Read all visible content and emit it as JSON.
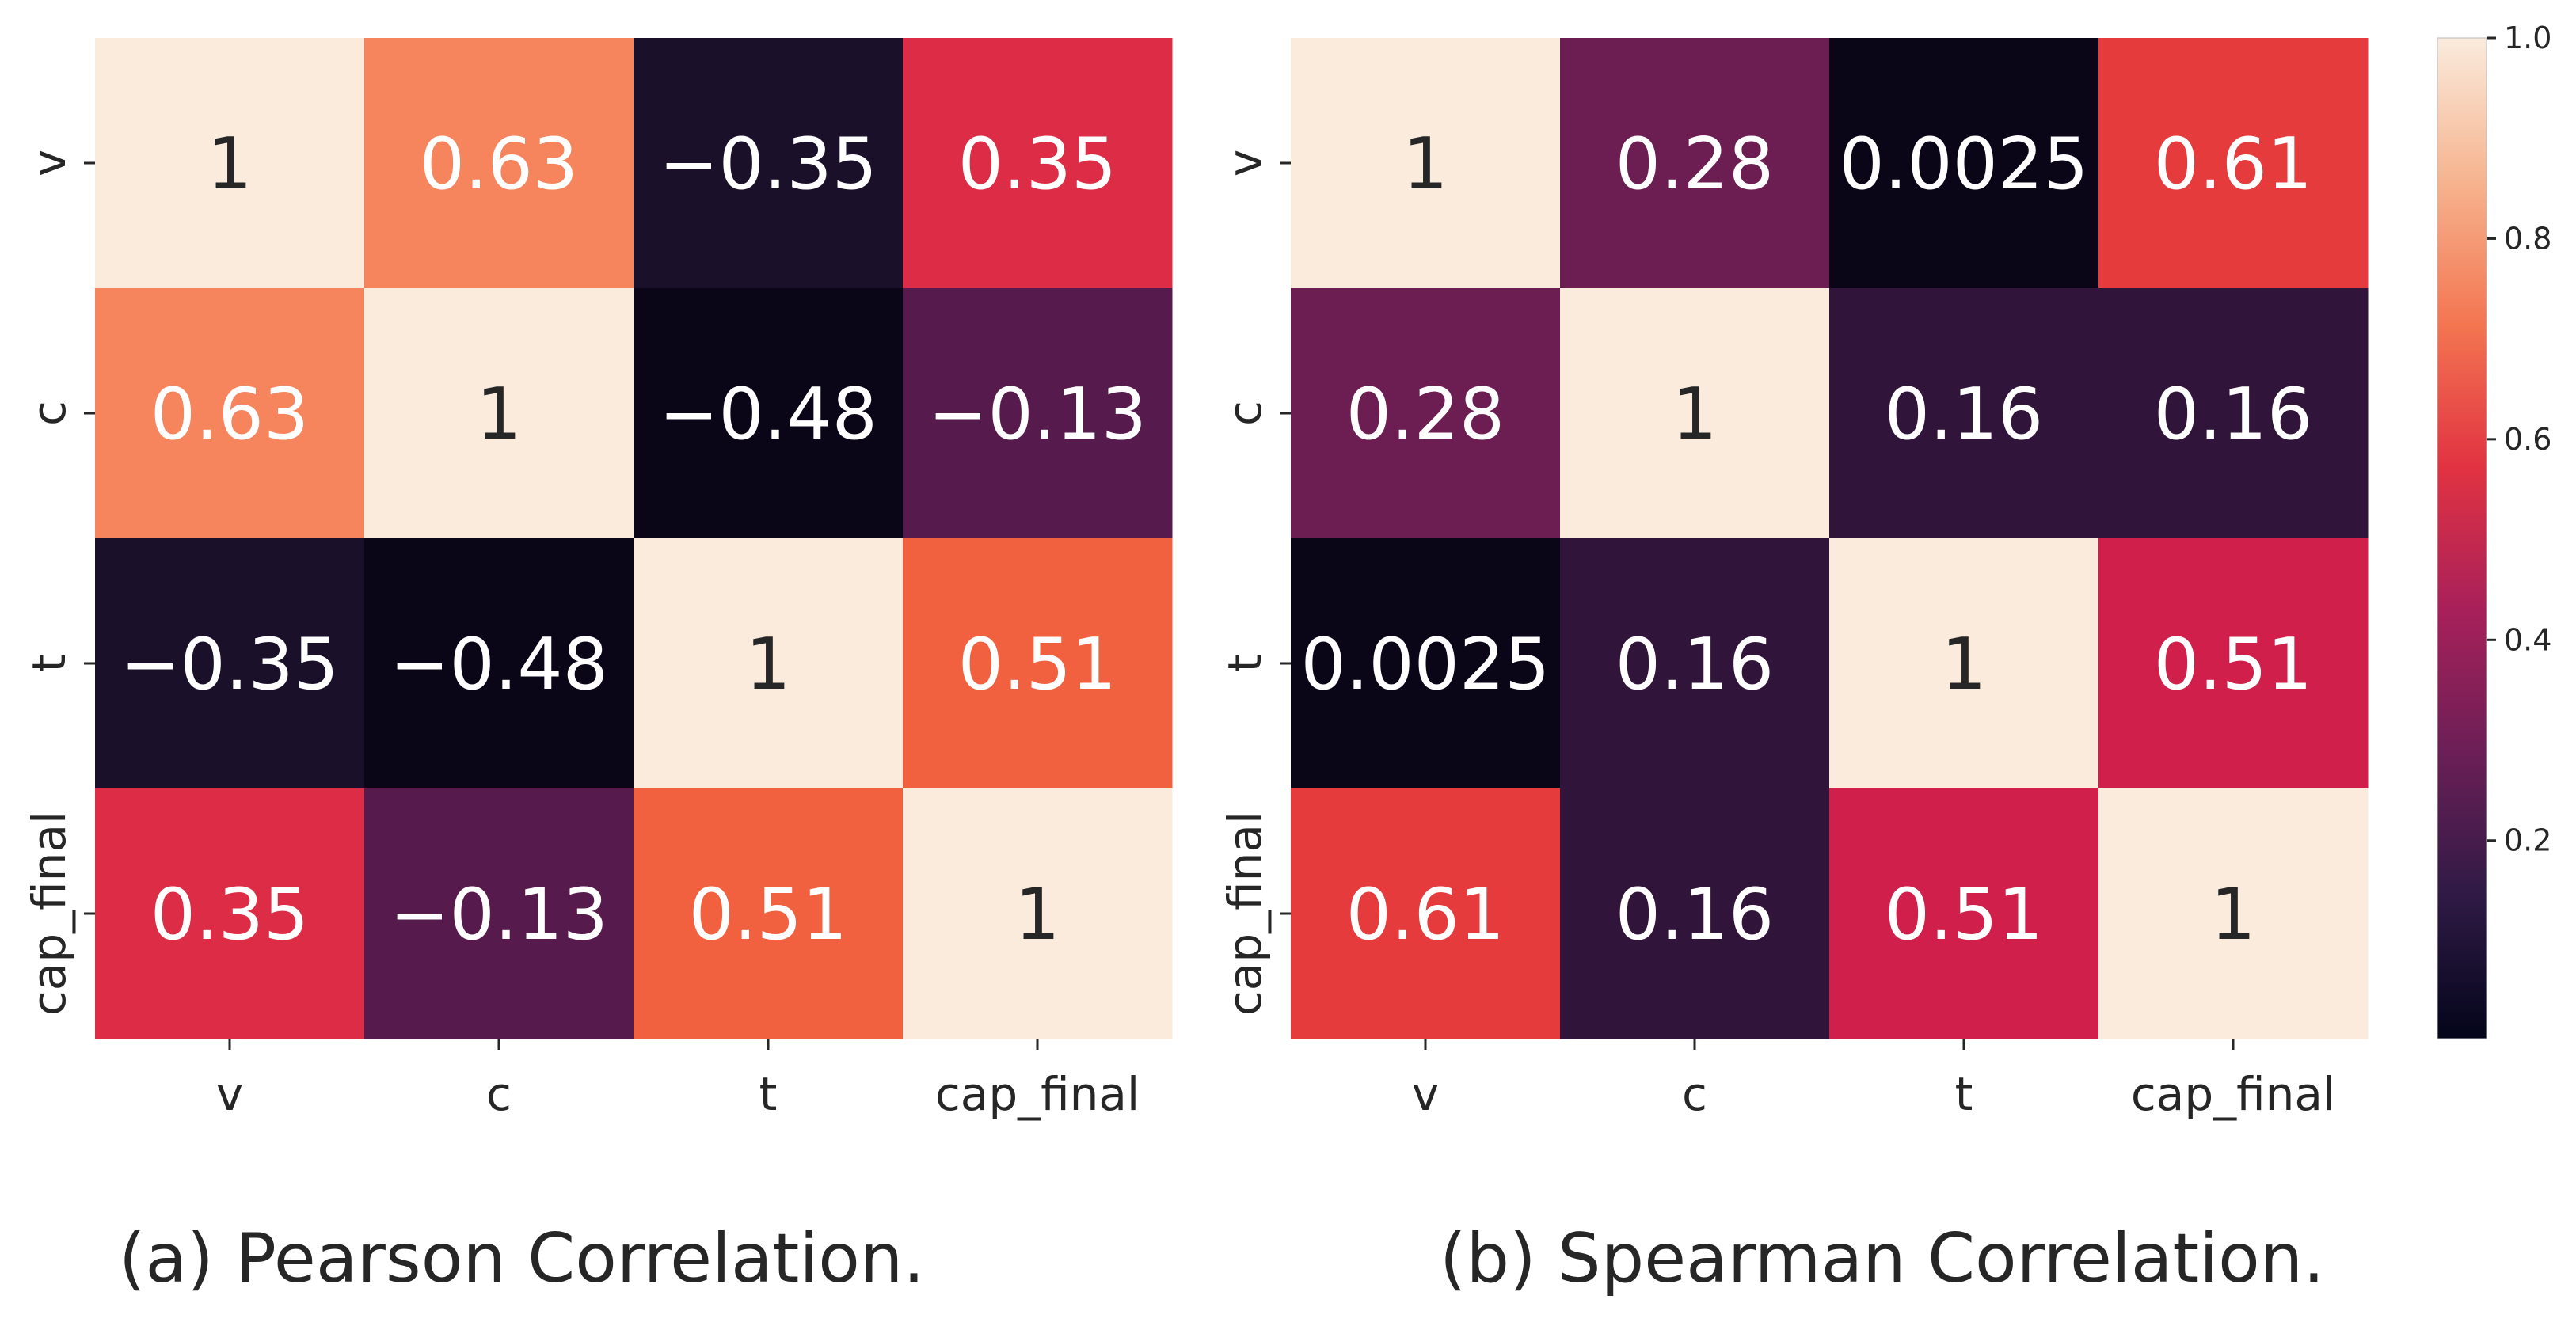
{
  "chart_data": [
    {
      "type": "heatmap",
      "title": "",
      "row_labels": [
        "v",
        "c",
        "t",
        "cap_final"
      ],
      "col_labels": [
        "v",
        "c",
        "t",
        "cap_final"
      ],
      "values": [
        [
          1,
          0.63,
          -0.35,
          0.35
        ],
        [
          0.63,
          1,
          -0.48,
          -0.13
        ],
        [
          -0.35,
          -0.48,
          1,
          0.51
        ],
        [
          0.35,
          -0.13,
          0.51,
          1
        ]
      ],
      "cell_labels": [
        [
          "1",
          "0.63",
          "−0.35",
          "0.35"
        ],
        [
          "0.63",
          "1",
          "−0.48",
          "−0.13"
        ],
        [
          "−0.35",
          "−0.48",
          "1",
          "0.51"
        ],
        [
          "0.35",
          "−0.13",
          "0.51",
          "1"
        ]
      ],
      "colors": [
        [
          "#faebdd",
          "#f6845d",
          "#1b1029",
          "#dd2c45"
        ],
        [
          "#f6845d",
          "#faebdd",
          "#0b0617",
          "#561b4c"
        ],
        [
          "#1b1029",
          "#0b0617",
          "#faebdd",
          "#f1603f"
        ],
        [
          "#dd2c45",
          "#561b4c",
          "#f1603f",
          "#faebdd"
        ]
      ],
      "caption": "(a) Pearson Correlation."
    },
    {
      "type": "heatmap",
      "title": "",
      "row_labels": [
        "v",
        "c",
        "t",
        "cap_final"
      ],
      "col_labels": [
        "v",
        "c",
        "t",
        "cap_final"
      ],
      "values": [
        [
          1,
          0.28,
          0.0025,
          0.61
        ],
        [
          0.28,
          1,
          0.16,
          0.16
        ],
        [
          0.0025,
          0.16,
          1,
          0.51
        ],
        [
          0.61,
          0.16,
          0.51,
          1
        ]
      ],
      "cell_labels": [
        [
          "1",
          "0.28",
          "0.0025",
          "0.61"
        ],
        [
          "0.28",
          "1",
          "0.16",
          "0.16"
        ],
        [
          "0.0025",
          "0.16",
          "1",
          "0.51"
        ],
        [
          "0.61",
          "0.16",
          "0.51",
          "1"
        ]
      ],
      "colors": [
        [
          "#faebdd",
          "#6c1e52",
          "#0b0617",
          "#e63b3c"
        ],
        [
          "#6c1e52",
          "#faebdd",
          "#311439",
          "#311439"
        ],
        [
          "#0b0617",
          "#311439",
          "#faebdd",
          "#cf1f4a"
        ],
        [
          "#e63b3c",
          "#311439",
          "#cf1f4a",
          "#faebdd"
        ]
      ],
      "caption": "(b) Spearman Correlation."
    }
  ],
  "colorbar": {
    "ticks": [
      "0.2",
      "0.4",
      "0.6",
      "0.8",
      "1.0"
    ],
    "tick_values": [
      0.2,
      0.4,
      0.6,
      0.8,
      1.0
    ],
    "vmin": 0.0025,
    "vmax": 1.0,
    "gradient": [
      "#03051a",
      "#2f1a45",
      "#6b1f56",
      "#a8205a",
      "#e13342",
      "#f37651",
      "#f6b48f",
      "#faebdd"
    ]
  }
}
